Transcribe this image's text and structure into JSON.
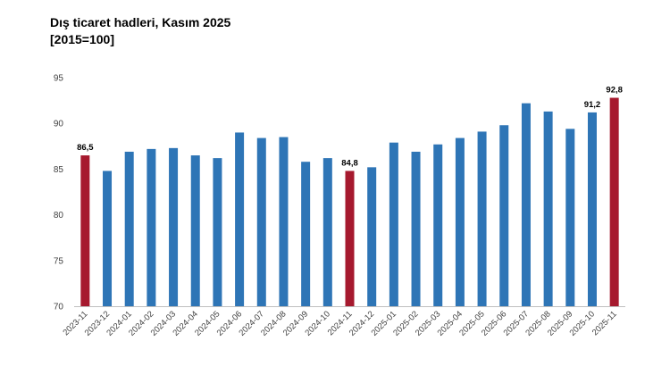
{
  "chart_data": {
    "type": "bar",
    "title": "Dış ticaret hadleri, Kasım 2025",
    "subtitle": "[2015=100]",
    "xlabel": "",
    "ylabel": "",
    "ylim": [
      70,
      95
    ],
    "yticks": [
      70,
      75,
      80,
      85,
      90,
      95
    ],
    "grid": false,
    "legend": "none",
    "categories": [
      "2023-11",
      "2023-12",
      "2024-01",
      "2024-02",
      "2024-03",
      "2024-04",
      "2024-05",
      "2024-06",
      "2024-07",
      "2024-08",
      "2024-09",
      "2024-10",
      "2024-11",
      "2024-12",
      "2025-01",
      "2025-02",
      "2025-03",
      "2025-04",
      "2025-05",
      "2025-06",
      "2025-07",
      "2025-08",
      "2025-09",
      "2025-10",
      "2025-11"
    ],
    "values": [
      86.5,
      84.8,
      86.9,
      87.2,
      87.3,
      86.5,
      86.2,
      89.0,
      88.4,
      88.5,
      85.8,
      86.2,
      84.8,
      85.2,
      87.9,
      86.9,
      87.7,
      88.4,
      89.1,
      89.8,
      92.2,
      91.3,
      89.4,
      91.2,
      92.8
    ],
    "highlighted": [
      "2023-11",
      "2024-11",
      "2025-11"
    ],
    "data_labels": [
      {
        "category": "2023-11",
        "text": "86,5"
      },
      {
        "category": "2024-11",
        "text": "84,8"
      },
      {
        "category": "2025-10",
        "text": "91,2"
      },
      {
        "category": "2025-11",
        "text": "92,8"
      }
    ],
    "colors": {
      "default": "#2e75b6",
      "highlight": "#a6192e",
      "axis": "#bfbfbf"
    }
  }
}
